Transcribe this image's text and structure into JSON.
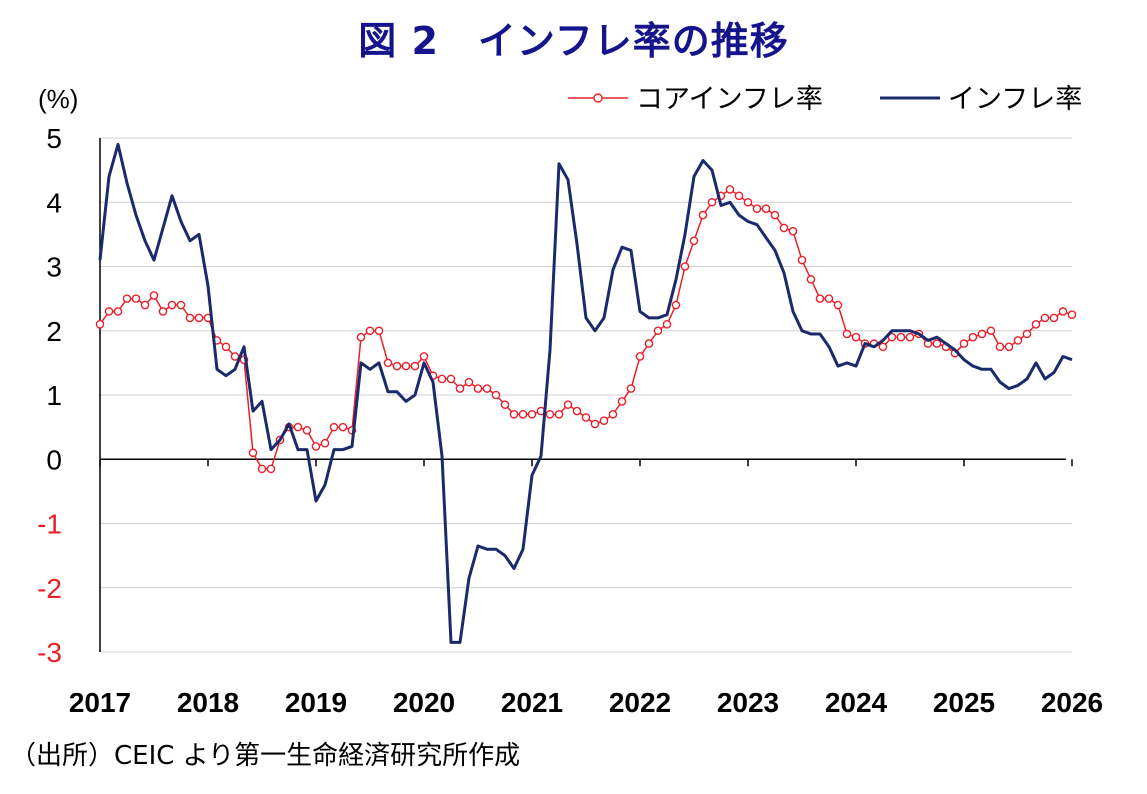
{
  "title": "図 2　インフレ率の推移",
  "source": "（出所）CEIC より第一生命経済研究所作成",
  "chart_data": {
    "type": "line",
    "title": "図 2　インフレ率の推移",
    "ylabel": "(%)",
    "ylim": [
      -3,
      5
    ],
    "yticks": [
      5,
      4,
      3,
      2,
      1,
      0,
      -1,
      -2,
      -3
    ],
    "xlim": [
      2017,
      2026
    ],
    "xticks": [
      2017,
      2018,
      2019,
      2020,
      2021,
      2022,
      2023,
      2024,
      2025,
      2026
    ],
    "legend_position": "top-right",
    "colors": {
      "core": "#e8202a",
      "headline": "#1b2a6b",
      "negative_tick": "#e8202a"
    },
    "series": [
      {
        "name": "コアインフレ率",
        "key": "core",
        "marker": "circle",
        "x_start": 2017.0,
        "x_step": 0.08333,
        "values": [
          2.1,
          2.3,
          2.3,
          2.5,
          2.5,
          2.4,
          2.55,
          2.3,
          2.4,
          2.4,
          2.2,
          2.2,
          2.2,
          1.85,
          1.75,
          1.6,
          1.55,
          0.1,
          -0.15,
          -0.15,
          0.3,
          0.5,
          0.5,
          0.45,
          0.2,
          0.25,
          0.5,
          0.5,
          0.45,
          1.9,
          2.0,
          2.0,
          1.5,
          1.45,
          1.45,
          1.45,
          1.6,
          1.3,
          1.25,
          1.25,
          1.1,
          1.2,
          1.1,
          1.1,
          1.0,
          0.85,
          0.7,
          0.7,
          0.7,
          0.75,
          0.7,
          0.7,
          0.85,
          0.75,
          0.65,
          0.55,
          0.6,
          0.7,
          0.9,
          1.1,
          1.6,
          1.8,
          2.0,
          2.1,
          2.4,
          3.0,
          3.4,
          3.8,
          4.0,
          4.1,
          4.2,
          4.1,
          4.0,
          3.9,
          3.9,
          3.8,
          3.6,
          3.55,
          3.1,
          2.8,
          2.5,
          2.5,
          2.4,
          1.95,
          1.9,
          1.8,
          1.8,
          1.75,
          1.9,
          1.9,
          1.9,
          1.95,
          1.8,
          1.8,
          1.75,
          1.65,
          1.8,
          1.9,
          1.95,
          2.0,
          1.75,
          1.75,
          1.85,
          1.95,
          2.1,
          2.2,
          2.2,
          2.3,
          2.25
        ]
      },
      {
        "name": "インフレ率",
        "key": "headline",
        "marker": "none",
        "x_start": 2017.0,
        "x_step": 0.08333,
        "values": [
          3.1,
          4.4,
          4.9,
          4.3,
          3.8,
          3.4,
          3.1,
          3.6,
          4.1,
          3.7,
          3.4,
          3.5,
          2.7,
          1.4,
          1.3,
          1.4,
          1.75,
          0.75,
          0.9,
          0.15,
          0.3,
          0.55,
          0.15,
          0.15,
          -0.65,
          -0.4,
          0.15,
          0.15,
          0.2,
          1.5,
          1.4,
          1.5,
          1.05,
          1.05,
          0.9,
          1.0,
          1.5,
          1.2,
          0.05,
          -2.85,
          -2.85,
          -1.85,
          -1.35,
          -1.4,
          -1.4,
          -1.5,
          -1.7,
          -1.4,
          -0.25,
          0.05,
          1.7,
          4.6,
          4.35,
          3.35,
          2.2,
          2.0,
          2.2,
          2.95,
          3.3,
          3.25,
          2.3,
          2.2,
          2.2,
          2.25,
          2.8,
          3.5,
          4.4,
          4.65,
          4.5,
          3.95,
          4.0,
          3.8,
          3.7,
          3.65,
          3.45,
          3.25,
          2.9,
          2.3,
          2.0,
          1.95,
          1.95,
          1.75,
          1.45,
          1.5,
          1.45,
          1.8,
          1.75,
          1.85,
          2.0,
          2.0,
          2.0,
          1.95,
          1.85,
          1.9,
          1.8,
          1.7,
          1.55,
          1.45,
          1.4,
          1.4,
          1.2,
          1.1,
          1.15,
          1.25,
          1.5,
          1.25,
          1.35,
          1.6,
          1.55
        ]
      }
    ]
  }
}
